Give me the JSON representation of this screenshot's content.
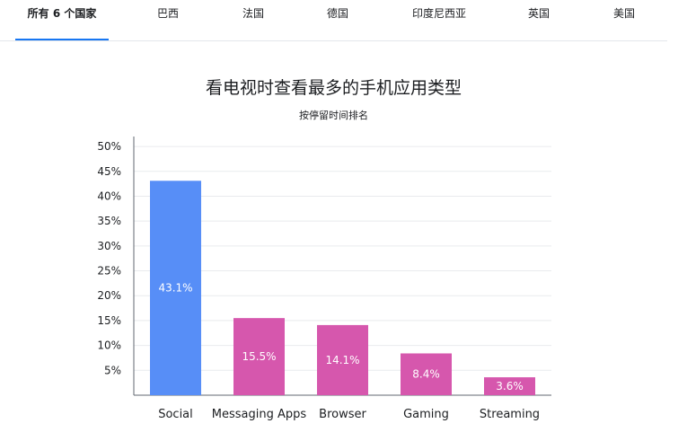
{
  "tabs": [
    {
      "label": "所有 6 个国家",
      "active": true
    },
    {
      "label": "巴西",
      "active": false
    },
    {
      "label": "法国",
      "active": false
    },
    {
      "label": "德国",
      "active": false
    },
    {
      "label": "印度尼西亚",
      "active": false
    },
    {
      "label": "英国",
      "active": false
    },
    {
      "label": "美国",
      "active": false
    }
  ],
  "colors": {
    "accent": "#1877f2",
    "social_bar": "#578ef7",
    "other_bars": "#d657ad",
    "grid": "#e9ebee",
    "axis": "#606770"
  },
  "chart_data": {
    "type": "bar",
    "title": "看电视时查看最多的手机应用类型",
    "subtitle": "按停留时间排名",
    "categories": [
      "Social",
      "Messaging Apps",
      "Browser",
      "Gaming",
      "Streaming"
    ],
    "values": [
      43.1,
      15.5,
      14.1,
      8.4,
      3.6
    ],
    "value_labels": [
      "43.1%",
      "15.5%",
      "14.1%",
      "8.4%",
      "3.6%"
    ],
    "bar_colors": [
      "#578ef7",
      "#d657ad",
      "#d657ad",
      "#d657ad",
      "#d657ad"
    ],
    "yticks": [
      5,
      10,
      15,
      20,
      25,
      30,
      35,
      40,
      45,
      50
    ],
    "ytick_labels": [
      "5%",
      "10%",
      "15%",
      "20%",
      "25%",
      "30%",
      "35%",
      "40%",
      "45%",
      "50%"
    ],
    "ylim": [
      0,
      52
    ],
    "grid": true,
    "legend": "none"
  }
}
